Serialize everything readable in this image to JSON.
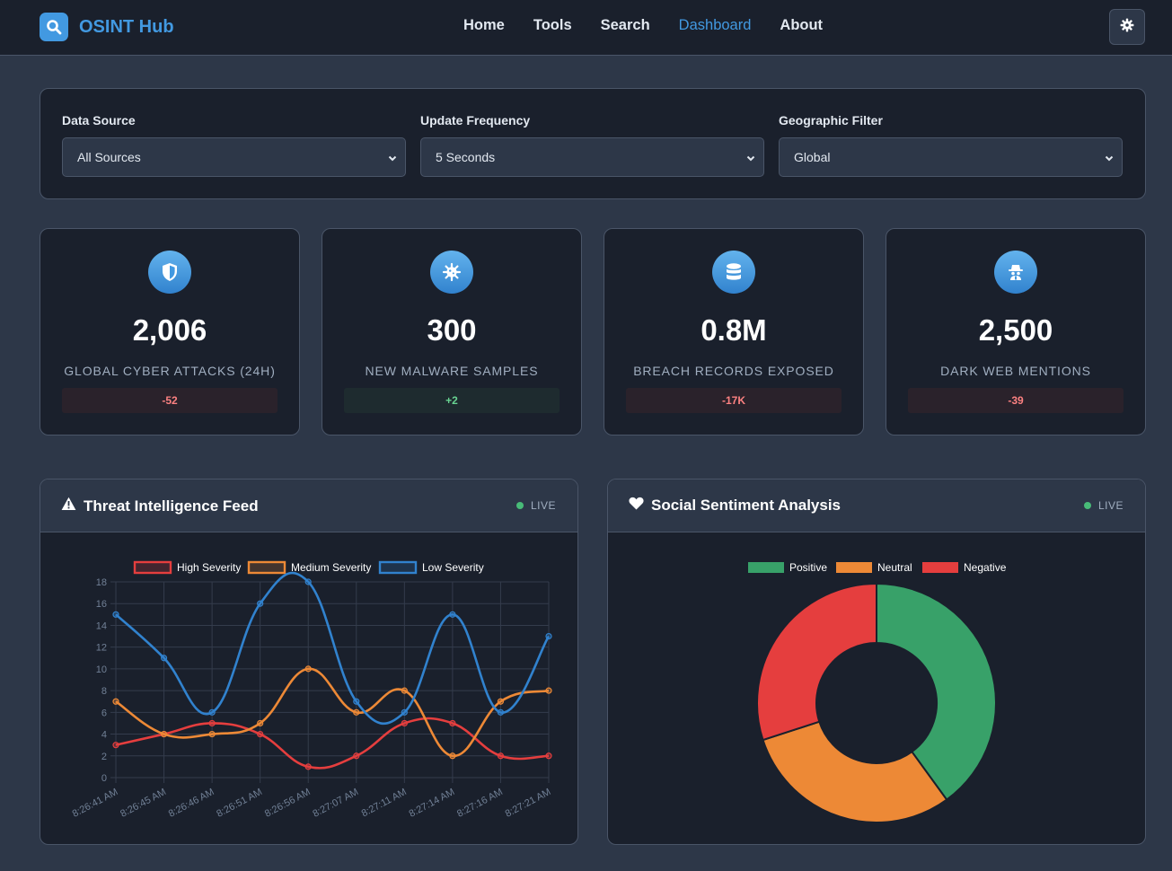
{
  "brand": {
    "name": "OSINT Hub"
  },
  "nav": {
    "items": [
      "Home",
      "Tools",
      "Search",
      "Dashboard",
      "About"
    ],
    "active": "Dashboard"
  },
  "filters": {
    "data_source": {
      "label": "Data Source",
      "value": "All Sources"
    },
    "update_frequency": {
      "label": "Update Frequency",
      "value": "5 Seconds"
    },
    "geographic": {
      "label": "Geographic Filter",
      "value": "Global"
    }
  },
  "stats": [
    {
      "value": "2,006",
      "label": "GLOBAL CYBER ATTACKS (24H)",
      "change": "-52",
      "trend": "negative",
      "icon": "shield-icon"
    },
    {
      "value": "300",
      "label": "NEW MALWARE SAMPLES",
      "change": "+2",
      "trend": "positive",
      "icon": "virus-icon"
    },
    {
      "value": "0.8M",
      "label": "BREACH RECORDS EXPOSED",
      "change": "-17K",
      "trend": "negative",
      "icon": "database-icon"
    },
    {
      "value": "2,500",
      "label": "DARK WEB MENTIONS",
      "change": "-39",
      "trend": "negative",
      "icon": "spy-icon"
    }
  ],
  "panels": {
    "threat": {
      "title": "Threat Intelligence Feed",
      "live": "LIVE",
      "icon": "warning-icon"
    },
    "sentiment": {
      "title": "Social Sentiment Analysis",
      "live": "LIVE",
      "icon": "heart-icon"
    }
  },
  "colors": {
    "accent": "#4299e1",
    "high": "#e53e3e",
    "medium": "#ed8936",
    "low": "#3182ce",
    "positive": "#38a169",
    "neutral": "#ed8936",
    "negative": "#e53e3e",
    "live": "#48bb78"
  },
  "chart_data": [
    {
      "type": "line",
      "title": "",
      "x": [
        "8:26:41 AM",
        "8:26:45 AM",
        "8:26:46 AM",
        "8:26:51 AM",
        "8:26:56 AM",
        "8:27:07 AM",
        "8:27:11 AM",
        "8:27:14 AM",
        "8:27:16 AM",
        "8:27:21 AM"
      ],
      "series": [
        {
          "name": "High Severity",
          "values": [
            3,
            4,
            5,
            4,
            1,
            2,
            5,
            5,
            2,
            2
          ]
        },
        {
          "name": "Medium Severity",
          "values": [
            7,
            4,
            4,
            5,
            10,
            6,
            8,
            2,
            7,
            8
          ]
        },
        {
          "name": "Low Severity",
          "values": [
            15,
            11,
            6,
            16,
            18,
            7,
            6,
            15,
            6,
            13
          ]
        }
      ],
      "ylim": [
        0,
        18
      ],
      "yticks": [
        "0",
        "2",
        "4",
        "6",
        "8",
        "10",
        "12",
        "14",
        "16",
        "18"
      ],
      "grid": true,
      "legend": "top"
    },
    {
      "type": "pie",
      "title": "",
      "categories": [
        "Positive",
        "Neutral",
        "Negative"
      ],
      "values": [
        40,
        30,
        30
      ],
      "donut": true,
      "legend": "top"
    }
  ]
}
